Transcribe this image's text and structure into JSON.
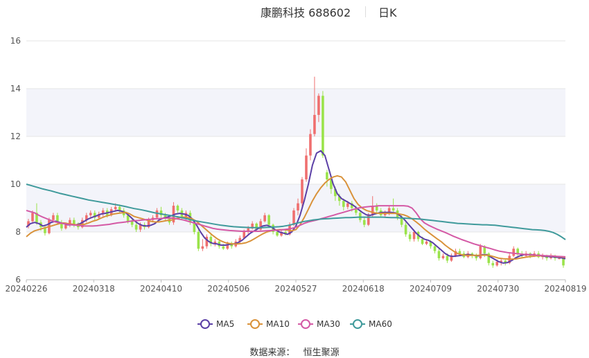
{
  "title": {
    "main": "康鹏科技 688602",
    "sub": "日K"
  },
  "legend": [
    {
      "name": "MA5",
      "color": "#5b3fa6"
    },
    {
      "name": "MA10",
      "color": "#d9923a"
    },
    {
      "name": "MA30",
      "color": "#d459a5"
    },
    {
      "name": "MA60",
      "color": "#3f9a9b"
    }
  ],
  "source": {
    "label": "数据来源：",
    "value": "恒生聚源"
  },
  "chart_data": {
    "type": "candlestick",
    "ylim": [
      6,
      16
    ],
    "yticks": [
      "6",
      "8",
      "10",
      "12",
      "14",
      "16"
    ],
    "xticks": [
      "20240226",
      "20240318",
      "20240410",
      "20240506",
      "20240527",
      "20240618",
      "20240709",
      "20240730",
      "20240819"
    ],
    "up_color": "#ef6f6f",
    "down_color": "#9ae34a",
    "grid_band_color": "#f3f4fa",
    "candles": [
      [
        8.25,
        8.45,
        8.15,
        8.55
      ],
      [
        8.45,
        8.8,
        8.35,
        8.9
      ],
      [
        8.8,
        8.4,
        8.3,
        9.2
      ],
      [
        8.4,
        8.2,
        8.05,
        8.5
      ],
      [
        8.2,
        7.95,
        7.85,
        8.3
      ],
      [
        7.95,
        8.5,
        7.9,
        8.6
      ],
      [
        8.5,
        8.7,
        8.4,
        8.8
      ],
      [
        8.7,
        8.4,
        8.3,
        8.8
      ],
      [
        8.4,
        8.15,
        8.05,
        8.5
      ],
      [
        8.15,
        8.3,
        8.1,
        8.4
      ],
      [
        8.3,
        8.5,
        8.2,
        8.6
      ],
      [
        8.5,
        8.3,
        8.2,
        8.6
      ],
      [
        8.3,
        8.2,
        8.1,
        8.4
      ],
      [
        8.2,
        8.5,
        8.15,
        8.6
      ],
      [
        8.5,
        8.7,
        8.4,
        8.8
      ],
      [
        8.7,
        8.8,
        8.6,
        8.9
      ],
      [
        8.8,
        8.6,
        8.5,
        8.9
      ],
      [
        8.6,
        8.75,
        8.55,
        8.85
      ],
      [
        8.75,
        8.9,
        8.65,
        9.0
      ],
      [
        8.9,
        8.7,
        8.6,
        9.0
      ],
      [
        8.7,
        8.95,
        8.65,
        9.05
      ],
      [
        8.95,
        9.05,
        8.85,
        9.2
      ],
      [
        9.05,
        8.9,
        8.8,
        9.15
      ],
      [
        8.9,
        8.7,
        8.6,
        9.0
      ],
      [
        8.7,
        8.45,
        8.35,
        8.8
      ],
      [
        8.45,
        8.3,
        8.2,
        8.6
      ],
      [
        8.3,
        8.1,
        8.0,
        8.4
      ],
      [
        8.1,
        8.3,
        8.0,
        8.4
      ],
      [
        8.3,
        8.2,
        8.1,
        8.4
      ],
      [
        8.2,
        8.5,
        8.15,
        8.6
      ],
      [
        8.5,
        8.6,
        8.4,
        8.7
      ],
      [
        8.6,
        8.9,
        8.55,
        9.0
      ],
      [
        8.9,
        8.7,
        8.6,
        9.05
      ],
      [
        8.7,
        8.6,
        8.5,
        8.8
      ],
      [
        8.6,
        8.4,
        8.3,
        8.7
      ],
      [
        8.4,
        9.1,
        8.3,
        9.25
      ],
      [
        9.1,
        8.9,
        8.8,
        9.15
      ],
      [
        8.9,
        8.6,
        8.5,
        9.0
      ],
      [
        8.6,
        8.8,
        8.5,
        8.9
      ],
      [
        8.8,
        8.4,
        8.3,
        8.9
      ],
      [
        8.4,
        8.0,
        7.9,
        8.5
      ],
      [
        8.0,
        7.3,
        7.2,
        8.1
      ],
      [
        7.3,
        7.4,
        7.2,
        7.7
      ],
      [
        7.4,
        7.8,
        7.3,
        7.9
      ],
      [
        7.8,
        7.5,
        7.4,
        7.9
      ],
      [
        7.5,
        7.6,
        7.4,
        7.7
      ],
      [
        7.6,
        7.4,
        7.3,
        7.7
      ],
      [
        7.4,
        7.3,
        7.25,
        7.5
      ],
      [
        7.3,
        7.5,
        7.25,
        7.6
      ],
      [
        7.5,
        7.4,
        7.3,
        7.6
      ],
      [
        7.4,
        7.6,
        7.35,
        7.7
      ],
      [
        7.6,
        7.75,
        7.5,
        7.85
      ],
      [
        7.75,
        8.0,
        7.7,
        8.1
      ],
      [
        8.0,
        8.15,
        7.9,
        8.25
      ],
      [
        8.15,
        8.35,
        8.1,
        8.45
      ],
      [
        8.35,
        8.1,
        8.0,
        8.4
      ],
      [
        8.1,
        8.45,
        8.05,
        8.55
      ],
      [
        8.45,
        8.7,
        8.4,
        8.8
      ],
      [
        8.7,
        8.3,
        8.2,
        8.75
      ],
      [
        8.3,
        8.0,
        7.9,
        8.35
      ],
      [
        8.0,
        7.85,
        7.8,
        8.1
      ],
      [
        7.85,
        8.0,
        7.8,
        8.1
      ],
      [
        8.0,
        7.9,
        7.85,
        8.1
      ],
      [
        7.9,
        8.3,
        7.85,
        8.4
      ],
      [
        8.3,
        8.9,
        8.25,
        9.0
      ],
      [
        8.9,
        9.2,
        8.7,
        9.4
      ],
      [
        9.2,
        10.2,
        9.0,
        10.3
      ],
      [
        10.2,
        11.2,
        10.1,
        11.5
      ],
      [
        11.2,
        12.1,
        11.0,
        12.3
      ],
      [
        12.1,
        12.9,
        12.0,
        14.5
      ],
      [
        12.9,
        13.7,
        12.6,
        13.8
      ],
      [
        13.7,
        11.2,
        11.1,
        13.9
      ],
      [
        10.5,
        10.2,
        9.9,
        10.6
      ],
      [
        10.2,
        9.8,
        9.6,
        10.3
      ],
      [
        9.8,
        9.5,
        9.3,
        9.9
      ],
      [
        9.5,
        9.3,
        9.1,
        9.6
      ],
      [
        9.3,
        9.05,
        8.9,
        9.4
      ],
      [
        9.05,
        9.2,
        8.95,
        9.3
      ],
      [
        9.2,
        9.0,
        8.85,
        9.3
      ],
      [
        9.0,
        8.8,
        8.7,
        9.1
      ],
      [
        8.8,
        8.5,
        8.4,
        8.9
      ],
      [
        8.5,
        8.3,
        8.2,
        8.65
      ],
      [
        8.3,
        8.7,
        8.25,
        8.8
      ],
      [
        8.7,
        9.1,
        8.6,
        9.5
      ],
      [
        9.1,
        8.9,
        8.75,
        9.2
      ],
      [
        8.9,
        8.7,
        8.6,
        9.0
      ],
      [
        8.7,
        8.8,
        8.6,
        8.9
      ],
      [
        8.8,
        9.0,
        8.7,
        9.1
      ],
      [
        9.0,
        8.9,
        8.8,
        9.4
      ],
      [
        8.9,
        8.6,
        8.5,
        9.0
      ],
      [
        8.6,
        8.3,
        8.2,
        8.7
      ],
      [
        8.3,
        7.9,
        7.8,
        8.4
      ],
      [
        7.9,
        7.7,
        7.6,
        8.0
      ],
      [
        7.7,
        8.0,
        7.6,
        8.1
      ],
      [
        8.0,
        7.7,
        7.6,
        8.05
      ],
      [
        7.7,
        7.5,
        7.45,
        7.8
      ],
      [
        7.5,
        7.6,
        7.45,
        7.7
      ],
      [
        7.6,
        7.4,
        7.3,
        7.65
      ],
      [
        7.4,
        7.2,
        7.1,
        7.5
      ],
      [
        7.2,
        6.9,
        6.8,
        7.3
      ],
      [
        6.9,
        7.0,
        6.85,
        7.1
      ],
      [
        7.0,
        6.8,
        6.7,
        7.1
      ],
      [
        6.8,
        7.0,
        6.75,
        7.1
      ],
      [
        7.0,
        7.2,
        6.95,
        7.3
      ],
      [
        7.2,
        7.1,
        7.0,
        7.3
      ],
      [
        7.1,
        6.95,
        6.9,
        7.2
      ],
      [
        6.95,
        7.1,
        6.9,
        7.2
      ],
      [
        7.1,
        7.0,
        6.9,
        7.15
      ],
      [
        7.0,
        6.9,
        6.8,
        7.1
      ],
      [
        6.9,
        7.4,
        6.85,
        7.5
      ],
      [
        7.4,
        7.1,
        6.95,
        7.45
      ],
      [
        7.1,
        6.7,
        6.6,
        7.15
      ],
      [
        6.7,
        6.6,
        6.5,
        6.8
      ],
      [
        6.6,
        6.75,
        6.55,
        6.85
      ],
      [
        6.75,
        6.8,
        6.6,
        6.9
      ],
      [
        6.8,
        6.7,
        6.6,
        6.85
      ],
      [
        6.7,
        7.0,
        6.65,
        7.1
      ],
      [
        7.0,
        7.3,
        6.95,
        7.4
      ],
      [
        7.3,
        7.1,
        7.0,
        7.35
      ],
      [
        7.1,
        7.0,
        6.9,
        7.2
      ],
      [
        7.0,
        7.1,
        6.95,
        7.2
      ],
      [
        7.1,
        7.0,
        6.9,
        7.15
      ],
      [
        7.0,
        7.1,
        6.95,
        7.2
      ],
      [
        7.1,
        6.95,
        6.9,
        7.2
      ],
      [
        6.95,
        7.0,
        6.85,
        7.1
      ],
      [
        7.0,
        6.9,
        6.8,
        7.05
      ],
      [
        6.9,
        7.0,
        6.85,
        7.1
      ],
      [
        7.0,
        6.9,
        6.8,
        7.05
      ],
      [
        6.9,
        6.9,
        6.85,
        7.0
      ],
      [
        6.9,
        6.6,
        6.5,
        6.95
      ]
    ],
    "series": [
      {
        "name": "MA5",
        "color": "#5b3fa6",
        "values": [
          8.2,
          8.35,
          8.4,
          8.35,
          8.25,
          8.3,
          8.4,
          8.45,
          8.4,
          8.35,
          8.3,
          8.3,
          8.3,
          8.35,
          8.45,
          8.55,
          8.62,
          8.68,
          8.75,
          8.78,
          8.82,
          8.86,
          8.9,
          8.87,
          8.8,
          8.65,
          8.48,
          8.35,
          8.27,
          8.25,
          8.28,
          8.35,
          8.5,
          8.58,
          8.62,
          8.68,
          8.75,
          8.78,
          8.75,
          8.7,
          8.55,
          8.3,
          8.0,
          7.75,
          7.6,
          7.52,
          7.5,
          7.45,
          7.45,
          7.48,
          7.5,
          7.55,
          7.65,
          7.8,
          7.95,
          8.05,
          8.15,
          8.25,
          8.28,
          8.22,
          8.1,
          8.0,
          7.95,
          7.9,
          8.0,
          8.25,
          8.7,
          9.3,
          10.0,
          10.8,
          11.3,
          11.4,
          11.2,
          10.6,
          10.0,
          9.6,
          9.4,
          9.3,
          9.2,
          9.1,
          8.95,
          8.82,
          8.72,
          8.7,
          8.75,
          8.8,
          8.82,
          8.82,
          8.82,
          8.8,
          8.7,
          8.55,
          8.35,
          8.15,
          7.95,
          7.8,
          7.7,
          7.65,
          7.55,
          7.4,
          7.25,
          7.1,
          7.0,
          6.98,
          7.0,
          7.02,
          7.05,
          7.05,
          7.02,
          7.0,
          7.05,
          7.05,
          6.95,
          6.85,
          6.75,
          6.7,
          6.72,
          6.8,
          6.92,
          7.0,
          7.05,
          7.05,
          7.05,
          7.02,
          7.0,
          6.98,
          6.97,
          6.96,
          6.94,
          6.92,
          6.88
        ]
      },
      {
        "name": "MA10",
        "color": "#d9923a",
        "values": [
          7.8,
          7.95,
          8.05,
          8.1,
          8.15,
          8.2,
          8.25,
          8.3,
          8.35,
          8.38,
          8.35,
          8.33,
          8.3,
          8.3,
          8.32,
          8.38,
          8.45,
          8.5,
          8.58,
          8.65,
          8.7,
          8.75,
          8.78,
          8.8,
          8.82,
          8.75,
          8.65,
          8.6,
          8.55,
          8.5,
          8.45,
          8.42,
          8.42,
          8.45,
          8.48,
          8.5,
          8.55,
          8.6,
          8.62,
          8.6,
          8.55,
          8.45,
          8.3,
          8.15,
          8.0,
          7.85,
          7.72,
          7.62,
          7.55,
          7.52,
          7.5,
          7.5,
          7.52,
          7.55,
          7.62,
          7.72,
          7.82,
          7.92,
          8.0,
          8.05,
          8.08,
          8.1,
          8.1,
          8.08,
          8.05,
          8.1,
          8.3,
          8.6,
          8.95,
          9.3,
          9.6,
          9.85,
          10.05,
          10.2,
          10.3,
          10.35,
          10.3,
          10.1,
          9.75,
          9.4,
          9.15,
          9.0,
          8.9,
          8.85,
          8.8,
          8.78,
          8.78,
          8.78,
          8.78,
          8.78,
          8.75,
          8.72,
          8.65,
          8.55,
          8.42,
          8.28,
          8.12,
          7.98,
          7.85,
          7.72,
          7.6,
          7.45,
          7.32,
          7.2,
          7.1,
          7.05,
          7.02,
          7.02,
          7.02,
          7.02,
          7.03,
          7.03,
          7.0,
          6.95,
          6.9,
          6.88,
          6.87,
          6.86,
          6.87,
          6.9,
          6.93,
          6.96,
          6.98,
          7.0,
          7.0,
          7.0,
          7.0,
          6.99,
          6.97,
          6.96,
          6.94
        ]
      },
      {
        "name": "MA30",
        "color": "#d459a5",
        "values": [
          8.9,
          8.85,
          8.8,
          8.7,
          8.62,
          8.55,
          8.48,
          8.42,
          8.38,
          8.35,
          8.32,
          8.3,
          8.28,
          8.27,
          8.25,
          8.25,
          8.25,
          8.26,
          8.28,
          8.3,
          8.32,
          8.35,
          8.38,
          8.4,
          8.42,
          8.45,
          8.47,
          8.48,
          8.5,
          8.52,
          8.53,
          8.55,
          8.56,
          8.57,
          8.58,
          8.58,
          8.56,
          8.53,
          8.5,
          8.45,
          8.4,
          8.35,
          8.3,
          8.25,
          8.2,
          8.15,
          8.12,
          8.1,
          8.08,
          8.06,
          8.05,
          8.04,
          8.03,
          8.03,
          8.03,
          8.03,
          8.03,
          8.04,
          8.05,
          8.06,
          8.07,
          8.08,
          8.1,
          8.12,
          8.15,
          8.2,
          8.28,
          8.36,
          8.42,
          8.46,
          8.5,
          8.55,
          8.6,
          8.65,
          8.7,
          8.75,
          8.8,
          8.85,
          8.9,
          8.95,
          9.0,
          9.03,
          9.05,
          9.07,
          9.08,
          9.1,
          9.1,
          9.1,
          9.1,
          9.1,
          9.1,
          9.1,
          9.08,
          9.0,
          8.8,
          8.55,
          8.38,
          8.28,
          8.2,
          8.12,
          8.05,
          7.98,
          7.9,
          7.82,
          7.75,
          7.68,
          7.62,
          7.56,
          7.5,
          7.45,
          7.4,
          7.35,
          7.3,
          7.25,
          7.2,
          7.17,
          7.14,
          7.12,
          7.1,
          7.08,
          7.06,
          7.05,
          7.04,
          7.03,
          7.02,
          7.01,
          7.0,
          6.99,
          6.98,
          6.97,
          6.96
        ]
      },
      {
        "name": "MA60",
        "color": "#3f9a9b",
        "values": [
          10.0,
          9.95,
          9.9,
          9.85,
          9.8,
          9.76,
          9.72,
          9.67,
          9.62,
          9.58,
          9.54,
          9.5,
          9.46,
          9.42,
          9.38,
          9.34,
          9.31,
          9.28,
          9.25,
          9.22,
          9.19,
          9.16,
          9.13,
          9.1,
          9.06,
          9.02,
          8.98,
          8.95,
          8.92,
          8.88,
          8.84,
          8.8,
          8.77,
          8.74,
          8.71,
          8.68,
          8.65,
          8.62,
          8.58,
          8.54,
          8.5,
          8.46,
          8.43,
          8.4,
          8.37,
          8.34,
          8.31,
          8.28,
          8.26,
          8.24,
          8.22,
          8.21,
          8.2,
          8.19,
          8.18,
          8.18,
          8.18,
          8.18,
          8.19,
          8.2,
          8.21,
          8.22,
          8.24,
          8.27,
          8.31,
          8.36,
          8.4,
          8.44,
          8.47,
          8.5,
          8.52,
          8.54,
          8.55,
          8.56,
          8.57,
          8.58,
          8.59,
          8.6,
          8.6,
          8.61,
          8.62,
          8.62,
          8.62,
          8.62,
          8.62,
          8.62,
          8.62,
          8.61,
          8.6,
          8.6,
          8.59,
          8.58,
          8.57,
          8.56,
          8.55,
          8.54,
          8.52,
          8.5,
          8.48,
          8.46,
          8.44,
          8.42,
          8.4,
          8.38,
          8.36,
          8.35,
          8.34,
          8.33,
          8.32,
          8.31,
          8.3,
          8.3,
          8.29,
          8.28,
          8.26,
          8.24,
          8.22,
          8.2,
          8.18,
          8.16,
          8.14,
          8.12,
          8.1,
          8.09,
          8.08,
          8.06,
          8.03,
          7.98,
          7.9,
          7.8,
          7.68
        ]
      }
    ]
  }
}
